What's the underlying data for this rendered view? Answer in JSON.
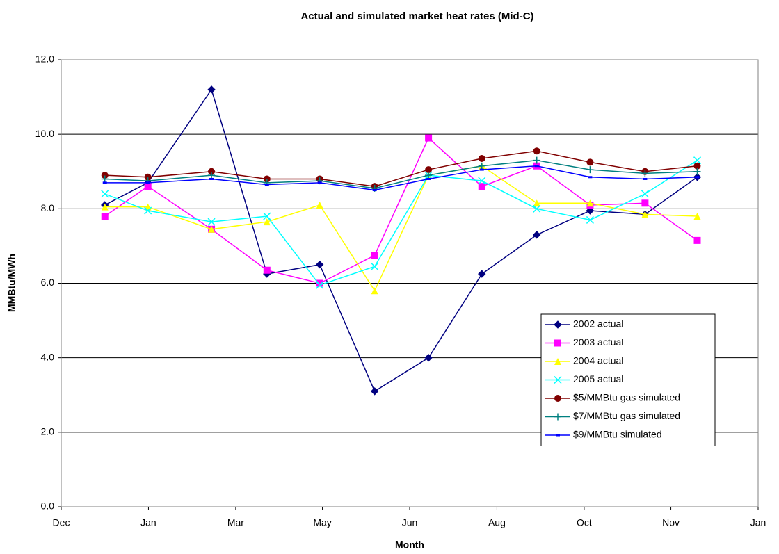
{
  "chart_data": {
    "type": "line",
    "title": "Actual and simulated market heat rates (Mid-C)",
    "x_label": "Month",
    "y_label": "MMBtu/MWh",
    "x": [
      1.0,
      1.8,
      2.98,
      4.01,
      4.99,
      6.01,
      7.01,
      8.0,
      9.02,
      10.01,
      11.03,
      12.0
    ],
    "xlim": [
      0.19,
      13.13
    ],
    "xticks": [
      {
        "value": 0.19,
        "label": "Dec"
      },
      {
        "value": 1.81,
        "label": "Jan"
      },
      {
        "value": 3.43,
        "label": "Mar"
      },
      {
        "value": 5.04,
        "label": "May"
      },
      {
        "value": 6.66,
        "label": "Jun"
      },
      {
        "value": 8.28,
        "label": "Aug"
      },
      {
        "value": 9.9,
        "label": "Oct"
      },
      {
        "value": 11.51,
        "label": "Nov"
      },
      {
        "value": 13.13,
        "label": "Jan"
      }
    ],
    "ylim": [
      0,
      12
    ],
    "yticks": [
      {
        "value": 0,
        "label": "0.0"
      },
      {
        "value": 2,
        "label": "2.0"
      },
      {
        "value": 4,
        "label": "4.0"
      },
      {
        "value": 6,
        "label": "6.0"
      },
      {
        "value": 8,
        "label": "8.0"
      },
      {
        "value": 10,
        "label": "10.0"
      },
      {
        "value": 12,
        "label": "12.0"
      }
    ],
    "grid": true,
    "legend": "right",
    "series": [
      {
        "name": "2002 actual",
        "color": "#000080",
        "marker": "diamond",
        "values": [
          8.1,
          8.7,
          11.2,
          6.25,
          6.5,
          3.1,
          4.0,
          6.25,
          7.3,
          7.95,
          7.85,
          8.85
        ]
      },
      {
        "name": "2003 actual",
        "color": "#ff00ff",
        "marker": "square",
        "values": [
          7.8,
          8.6,
          7.45,
          6.35,
          6.0,
          6.75,
          9.9,
          8.6,
          9.15,
          8.1,
          8.15,
          7.15
        ]
      },
      {
        "name": "2004 actual",
        "color": "#ffff00",
        "marker": "triangle",
        "values": [
          8.05,
          8.05,
          7.45,
          7.65,
          8.1,
          5.8,
          8.9,
          9.15,
          8.15,
          8.15,
          7.85,
          7.8
        ]
      },
      {
        "name": "2005 actual",
        "color": "#00ffff",
        "marker": "x",
        "values": [
          8.4,
          7.95,
          7.65,
          7.8,
          5.95,
          6.45,
          8.9,
          8.75,
          8.0,
          7.7,
          8.4,
          9.3
        ]
      },
      {
        "name": "$5/MMBtu gas simulated",
        "color": "#800000",
        "marker": "circle",
        "values": [
          8.9,
          8.85,
          9.0,
          8.8,
          8.8,
          8.6,
          9.05,
          9.35,
          9.55,
          9.25,
          9.0,
          9.15
        ]
      },
      {
        "name": "$7/MMBtu gas simulated",
        "color": "#008080",
        "marker": "plus",
        "values": [
          8.8,
          8.75,
          8.9,
          8.7,
          8.75,
          8.55,
          8.9,
          9.15,
          9.3,
          9.05,
          8.95,
          9.0
        ]
      },
      {
        "name": "$9/MMBtu simulated",
        "color": "#0000ff",
        "marker": "dash",
        "values": [
          8.7,
          8.7,
          8.8,
          8.65,
          8.7,
          8.5,
          8.8,
          9.05,
          9.15,
          8.85,
          8.8,
          8.85
        ]
      }
    ]
  }
}
